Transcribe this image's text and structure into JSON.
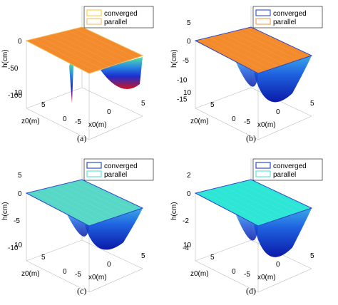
{
  "chart_data": [
    {
      "type": "surface",
      "caption": "(a)",
      "zlabel": "h(cm)",
      "xlabel": "x0(m)",
      "ylabel": "z0(m)",
      "zticks": [
        "0",
        "-50",
        "-100"
      ],
      "zmax_label": "",
      "xticks": [
        "-5",
        "0",
        "5"
      ],
      "yticks": [
        "0",
        "5",
        "10"
      ],
      "legend": [
        {
          "label": "converged",
          "color": "#ffd34a"
        },
        {
          "label": "parallel",
          "color": "#f2c47a"
        }
      ],
      "top_color": "#f38b2c",
      "surface_values": {
        "plane_h_cm": 0,
        "min_h_cm": -100
      }
    },
    {
      "type": "surface",
      "caption": "(b)",
      "zlabel": "h(cm)",
      "xlabel": "x0(m)",
      "ylabel": "z0(m)",
      "zticks": [
        "0",
        "-5",
        "-10",
        "-15"
      ],
      "zmax_label": "5",
      "xticks": [
        "-5",
        "0",
        "5"
      ],
      "yticks": [
        "0",
        "5",
        "10"
      ],
      "legend": [
        {
          "label": "converged",
          "color": "#3b5bd6"
        },
        {
          "label": "parallel",
          "color": "#f2a45a"
        }
      ],
      "top_color": "#f38b2c",
      "surface_values": {
        "plane_h_cm": 0,
        "min_h_cm": -15
      }
    },
    {
      "type": "surface",
      "caption": "(c)",
      "zlabel": "h(cm)",
      "xlabel": "x0(m)",
      "ylabel": "z0(m)",
      "zticks": [
        "0",
        "-5",
        "-10"
      ],
      "zmax_label": "5",
      "xticks": [
        "-5",
        "0",
        "5"
      ],
      "yticks": [
        "0",
        "5",
        "10"
      ],
      "legend": [
        {
          "label": "converged",
          "color": "#2b4fc9"
        },
        {
          "label": "parallel",
          "color": "#5fe6d8"
        }
      ],
      "top_color": "#57d8c6",
      "surface_values": {
        "plane_h_cm": 0,
        "min_h_cm": -10
      }
    },
    {
      "type": "surface",
      "caption": "(d)",
      "zlabel": "h(cm)",
      "xlabel": "x0(m)",
      "ylabel": "z0(m)",
      "zticks": [
        "0",
        "-2",
        "-4"
      ],
      "zmax_label": "2",
      "xticks": [
        "-5",
        "0",
        "5"
      ],
      "yticks": [
        "0",
        "5",
        "10"
      ],
      "legend": [
        {
          "label": "converged",
          "color": "#2b4fc9"
        },
        {
          "label": "parallel",
          "color": "#5fe6d8"
        }
      ],
      "top_color": "#2ee6d6",
      "surface_values": {
        "plane_h_cm": 0,
        "min_h_cm": -4
      }
    }
  ]
}
